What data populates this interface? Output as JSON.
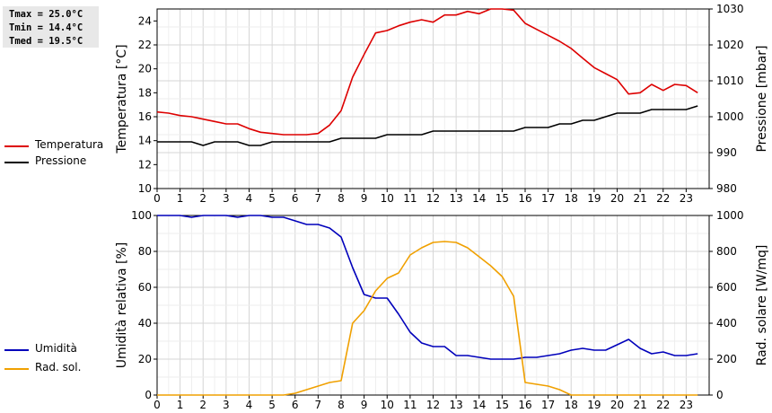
{
  "stats": {
    "tmax": "Tmax = 25.0°C",
    "tmin": "Tmin = 14.4°C",
    "tmed": "Tmed = 19.5°C"
  },
  "chart_data": [
    {
      "type": "line",
      "xlim": [
        0,
        24
      ],
      "xticks": [
        "0",
        "1",
        "2",
        "3",
        "4",
        "5",
        "6",
        "7",
        "8",
        "9",
        "10",
        "11",
        "12",
        "13",
        "14",
        "15",
        "16",
        "17",
        "18",
        "19",
        "20",
        "21",
        "22",
        "23"
      ],
      "ylabel": "Temperatura [°C]",
      "ylim": [
        10,
        25
      ],
      "yticks": [
        "10",
        "12",
        "14",
        "16",
        "18",
        "20",
        "22",
        "24"
      ],
      "y2label": "Pressione [mbar]",
      "y2lim": [
        980,
        1030
      ],
      "y2ticks": [
        "980",
        "990",
        "1000",
        "1010",
        "1020",
        "1030"
      ],
      "grid": true,
      "legend_position": "left",
      "series": [
        {
          "name": "Temperatura",
          "color": "#dd0000",
          "axis": "left",
          "x": [
            0,
            0.5,
            1,
            1.5,
            2,
            2.5,
            3,
            3.5,
            4,
            4.5,
            5,
            5.5,
            6,
            6.5,
            7,
            7.5,
            8,
            8.5,
            9,
            9.5,
            10,
            10.5,
            11,
            11.5,
            12,
            12.5,
            13,
            13.5,
            14,
            14.5,
            15,
            15.5,
            16,
            16.5,
            17,
            17.5,
            18,
            18.5,
            19,
            19.5,
            20,
            20.5,
            21,
            21.5,
            22,
            22.5,
            23,
            23.5
          ],
          "y": [
            16.4,
            16.3,
            16.1,
            16.0,
            15.8,
            15.6,
            15.4,
            15.4,
            15.0,
            14.7,
            14.6,
            14.5,
            14.5,
            14.5,
            14.6,
            15.3,
            16.5,
            19.3,
            21.2,
            23.0,
            23.2,
            23.6,
            23.9,
            24.1,
            23.9,
            24.5,
            24.5,
            24.8,
            24.6,
            25.0,
            25.0,
            24.9,
            23.8,
            23.3,
            22.8,
            22.3,
            21.7,
            20.9,
            20.1,
            19.6,
            19.1,
            17.9,
            18.0,
            18.7,
            18.2,
            18.7,
            18.6,
            18.0
          ]
        },
        {
          "name": "Pressione",
          "color": "#000000",
          "axis": "right",
          "x": [
            0,
            0.5,
            1,
            1.5,
            2,
            2.5,
            3,
            3.5,
            4,
            4.5,
            5,
            5.5,
            6,
            6.5,
            7,
            7.5,
            8,
            8.5,
            9,
            9.5,
            10,
            10.5,
            11,
            11.5,
            12,
            12.5,
            13,
            13.5,
            14,
            14.5,
            15,
            15.5,
            16,
            16.5,
            17,
            17.5,
            18,
            18.5,
            19,
            19.5,
            20,
            20.5,
            21,
            21.5,
            22,
            22.5,
            23,
            23.5
          ],
          "y": [
            993,
            993,
            993,
            993,
            992,
            993,
            993,
            993,
            992,
            992,
            993,
            993,
            993,
            993,
            993,
            993,
            994,
            994,
            994,
            994,
            995,
            995,
            995,
            995,
            996,
            996,
            996,
            996,
            996,
            996,
            996,
            996,
            997,
            997,
            997,
            998,
            998,
            999,
            999,
            1000,
            1001,
            1001,
            1001,
            1002,
            1002,
            1002,
            1002,
            1003
          ]
        }
      ]
    },
    {
      "type": "line",
      "xlim": [
        0,
        24
      ],
      "xticks": [
        "0",
        "1",
        "2",
        "3",
        "4",
        "5",
        "6",
        "7",
        "8",
        "9",
        "10",
        "11",
        "12",
        "13",
        "14",
        "15",
        "16",
        "17",
        "18",
        "19",
        "20",
        "21",
        "22",
        "23"
      ],
      "ylabel": "Umidità relativa [%]",
      "ylim": [
        0,
        100
      ],
      "yticks": [
        "0",
        "20",
        "40",
        "60",
        "80",
        "100"
      ],
      "y2label": "Rad. solare [W/mq]",
      "y2lim": [
        0,
        1000
      ],
      "y2ticks": [
        "0",
        "200",
        "400",
        "600",
        "800",
        "1000"
      ],
      "grid": true,
      "legend_position": "left",
      "series": [
        {
          "name": "Umidità",
          "color": "#0000bb",
          "axis": "left",
          "x": [
            0,
            0.5,
            1,
            1.5,
            2,
            2.5,
            3,
            3.5,
            4,
            4.5,
            5,
            5.5,
            6,
            6.5,
            7,
            7.5,
            8,
            8.5,
            9,
            9.5,
            10,
            10.5,
            11,
            11.5,
            12,
            12.5,
            13,
            13.5,
            14,
            14.5,
            15,
            15.5,
            16,
            16.5,
            17,
            17.5,
            18,
            18.5,
            19,
            19.5,
            20,
            20.5,
            21,
            21.5,
            22,
            22.5,
            23,
            23.5
          ],
          "y": [
            100,
            100,
            100,
            99,
            100,
            100,
            100,
            99,
            100,
            100,
            99,
            99,
            97,
            95,
            95,
            93,
            88,
            71,
            56,
            54,
            54,
            45,
            35,
            29,
            27,
            27,
            22,
            22,
            21,
            20,
            20,
            20,
            21,
            21,
            22,
            23,
            25,
            26,
            25,
            25,
            28,
            31,
            26,
            23,
            24,
            22,
            22,
            23
          ]
        },
        {
          "name": "Rad. sol.",
          "color": "#f0a000",
          "axis": "right",
          "x": [
            0,
            0.5,
            1,
            1.5,
            2,
            2.5,
            3,
            3.5,
            4,
            4.5,
            5,
            5.5,
            6,
            6.5,
            7,
            7.5,
            8,
            8.5,
            9,
            9.5,
            10,
            10.5,
            11,
            11.5,
            12,
            12.5,
            13,
            13.5,
            14,
            14.5,
            15,
            15.5,
            16,
            16.5,
            17,
            17.5,
            18,
            18.5,
            19,
            19.5,
            20,
            20.5,
            21,
            21.5,
            22,
            22.5,
            23,
            23.5
          ],
          "y": [
            0,
            0,
            0,
            0,
            0,
            0,
            0,
            0,
            0,
            0,
            0,
            0,
            10,
            30,
            50,
            70,
            80,
            400,
            470,
            580,
            650,
            680,
            780,
            820,
            850,
            855,
            850,
            820,
            770,
            720,
            660,
            550,
            70,
            60,
            50,
            30,
            0,
            0,
            0,
            0,
            0,
            0,
            0,
            0,
            0,
            0,
            0,
            0
          ]
        }
      ]
    }
  ]
}
